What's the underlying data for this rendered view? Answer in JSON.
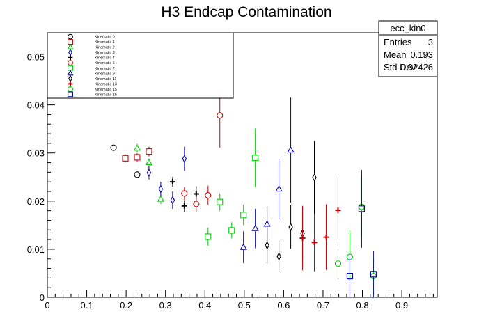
{
  "chart_data": {
    "type": "scatter",
    "title": "H3 Endcap Contamination",
    "xlabel": "",
    "ylabel": "",
    "xlim": [
      0,
      0.99
    ],
    "ylim": [
      0,
      0.055
    ],
    "x_ticks": [
      "0",
      "0.1",
      "0.2",
      "0.3",
      "0.4",
      "0.5",
      "0.6",
      "0.7",
      "0.8",
      "0.9"
    ],
    "y_ticks": [
      "0",
      "0.01",
      "0.02",
      "0.03",
      "0.04",
      "0.05"
    ],
    "grid": false,
    "legend_position": "top-left",
    "stats_box": {
      "name": "ecc_kin0",
      "rows": [
        {
          "label": "Entries",
          "value": "3"
        },
        {
          "label": "Mean",
          "value": "0.193"
        },
        {
          "label": "Std Dev",
          "value": "0.02426"
        }
      ]
    },
    "series": [
      {
        "name": "Kinematic 0",
        "marker": "circle",
        "color": "#000000",
        "points": [
          {
            "x": 0.168,
            "y": 0.0311,
            "err": 0.0006
          },
          {
            "x": 0.228,
            "y": 0.0255,
            "err": 0.0007
          }
        ]
      },
      {
        "name": "Kinematic 1",
        "marker": "square",
        "color": "#cc0000",
        "points": [
          {
            "x": 0.198,
            "y": 0.0289,
            "err": 0.0008
          },
          {
            "x": 0.228,
            "y": 0.0291,
            "err": 0.0009
          },
          {
            "x": 0.258,
            "y": 0.0303,
            "err": 0.001
          }
        ]
      },
      {
        "name": "Kinematic 2",
        "marker": "triangle",
        "color": "#00cc00",
        "points": [
          {
            "x": 0.228,
            "y": 0.031,
            "err": 0.0009
          },
          {
            "x": 0.258,
            "y": 0.028,
            "err": 0.0009
          },
          {
            "x": 0.288,
            "y": 0.0204,
            "err": 0.001
          }
        ]
      },
      {
        "name": "Kinematic 3",
        "marker": "diamond",
        "color": "#0000aa",
        "points": [
          {
            "x": 0.258,
            "y": 0.0259,
            "err": 0.0014
          },
          {
            "x": 0.288,
            "y": 0.0225,
            "err": 0.0015
          },
          {
            "x": 0.318,
            "y": 0.0202,
            "err": 0.0018
          },
          {
            "x": 0.348,
            "y": 0.0288,
            "err": 0.0025
          }
        ]
      },
      {
        "name": "Kinematic 4",
        "marker": "cross",
        "color": "#000000",
        "points": [
          {
            "x": 0.318,
            "y": 0.024,
            "err": 0.001
          },
          {
            "x": 0.348,
            "y": 0.019,
            "err": 0.0012
          },
          {
            "x": 0.378,
            "y": 0.0215,
            "err": 0.0016
          }
        ]
      },
      {
        "name": "Kinematic 5",
        "marker": "circle",
        "color": "#cc0000",
        "points": [
          {
            "x": 0.348,
            "y": 0.0216,
            "err": 0.0013
          },
          {
            "x": 0.378,
            "y": 0.0194,
            "err": 0.0016
          },
          {
            "x": 0.408,
            "y": 0.0212,
            "err": 0.002
          },
          {
            "x": 0.438,
            "y": 0.0378,
            "err": 0.0067
          }
        ]
      },
      {
        "name": "Kinematic 7",
        "marker": "square",
        "color": "#00cc00",
        "points": [
          {
            "x": 0.408,
            "y": 0.0126,
            "err": 0.0019
          },
          {
            "x": 0.438,
            "y": 0.0198,
            "err": 0.0018
          },
          {
            "x": 0.468,
            "y": 0.0139,
            "err": 0.0017
          },
          {
            "x": 0.498,
            "y": 0.0171,
            "err": 0.0021
          },
          {
            "x": 0.528,
            "y": 0.029,
            "err": 0.0061
          }
        ]
      },
      {
        "name": "Kinematic 9",
        "marker": "triangle",
        "color": "#0000aa",
        "points": [
          {
            "x": 0.498,
            "y": 0.0104,
            "err": 0.0033
          },
          {
            "x": 0.528,
            "y": 0.0143,
            "err": 0.0041
          },
          {
            "x": 0.558,
            "y": 0.0152,
            "err": 0.0037
          },
          {
            "x": 0.588,
            "y": 0.0225,
            "err": 0.0063
          },
          {
            "x": 0.618,
            "y": 0.0306,
            "err": 0.0109
          }
        ]
      },
      {
        "name": "Kinematic 11",
        "marker": "diamond",
        "color": "#000000",
        "points": [
          {
            "x": 0.558,
            "y": 0.0108,
            "err": 0.0038
          },
          {
            "x": 0.588,
            "y": 0.0085,
            "err": 0.0033
          },
          {
            "x": 0.618,
            "y": 0.0146,
            "err": 0.0045
          },
          {
            "x": 0.648,
            "y": 0.0133,
            "err": 0.0055
          },
          {
            "x": 0.678,
            "y": 0.0249,
            "err": 0.0076
          }
        ]
      },
      {
        "name": "Kinematic 13",
        "marker": "cross",
        "color": "#cc0000",
        "points": [
          {
            "x": 0.648,
            "y": 0.0123,
            "err": 0.0067
          },
          {
            "x": 0.678,
            "y": 0.0114,
            "err": 0.006
          },
          {
            "x": 0.708,
            "y": 0.0125,
            "err": 0.0068
          },
          {
            "x": 0.738,
            "y": 0.0181,
            "err": 0.0069
          }
        ]
      },
      {
        "name": "Kinematic 15",
        "marker": "circle",
        "color": "#00cc00",
        "points": [
          {
            "x": 0.738,
            "y": 0.007,
            "err": 0.0032
          },
          {
            "x": 0.768,
            "y": 0.0084,
            "err": 0.0055
          },
          {
            "x": 0.798,
            "y": 0.0188,
            "err": 0.0063
          },
          {
            "x": 0.828,
            "y": 0.0044,
            "err": 0.0038
          }
        ]
      },
      {
        "name": "Kinematic 16",
        "marker": "square",
        "color": "#0000aa",
        "points": [
          {
            "x": 0.768,
            "y": 0.0044,
            "err": 0.0043
          },
          {
            "x": 0.798,
            "y": 0.0184,
            "err": 0.0081
          },
          {
            "x": 0.828,
            "y": 0.0048,
            "err": 0.0049
          }
        ]
      }
    ]
  }
}
